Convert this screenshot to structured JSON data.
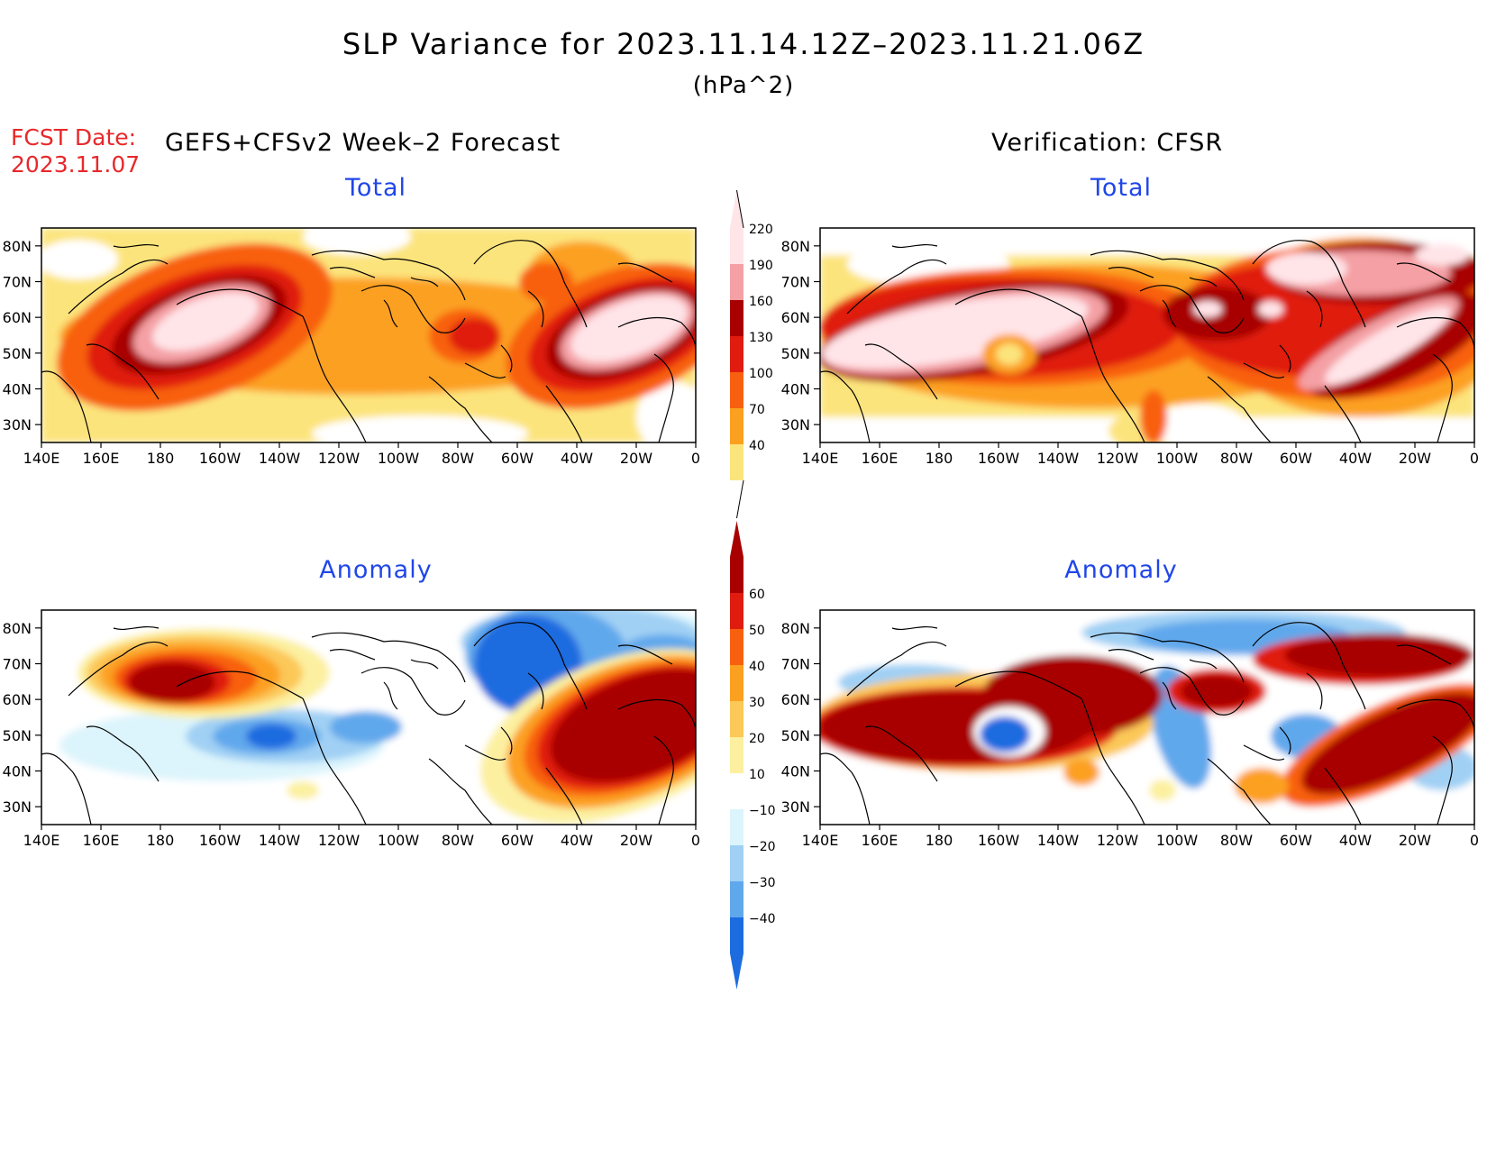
{
  "header": {
    "title": "SLP Variance for 2023.11.14.12Z–2023.11.21.06Z",
    "units": "(hPa^2)",
    "fcst_label": "FCST Date:",
    "fcst_date": "2023.11.07",
    "left_header": "GEFS+CFSv2 Week–2 Forecast",
    "right_header": "Verification: CFSR"
  },
  "panels": {
    "top_left_title": "Total",
    "top_right_title": "Total",
    "bottom_left_title": "Anomaly",
    "bottom_right_title": "Anomaly"
  },
  "axes": {
    "lat_ticks": [
      "80N",
      "70N",
      "60N",
      "50N",
      "40N",
      "30N"
    ],
    "lon_ticks": [
      "140E",
      "160E",
      "180",
      "160W",
      "140W",
      "120W",
      "100W",
      "80W",
      "60W",
      "40W",
      "20W",
      "0"
    ]
  },
  "colorbars": {
    "total": {
      "labels": [
        "220",
        "190",
        "160",
        "130",
        "100",
        "70",
        "40"
      ],
      "colors": [
        "#ffe4e8",
        "#f4a0a4",
        "#a80000",
        "#e01c10",
        "#f86010",
        "#fca020",
        "#fce47c"
      ]
    },
    "anomaly": {
      "labels": [
        "60",
        "50",
        "40",
        "30",
        "20",
        "10",
        "−10",
        "−20",
        "−30",
        "−40"
      ],
      "colors": [
        "#a80000",
        "#e01c10",
        "#f86010",
        "#fca020",
        "#fcc858",
        "#fcf0a0",
        "#ffffff",
        "#dcf4fc",
        "#a0d0f4",
        "#60a8ec",
        "#1c6ce0"
      ]
    }
  }
}
